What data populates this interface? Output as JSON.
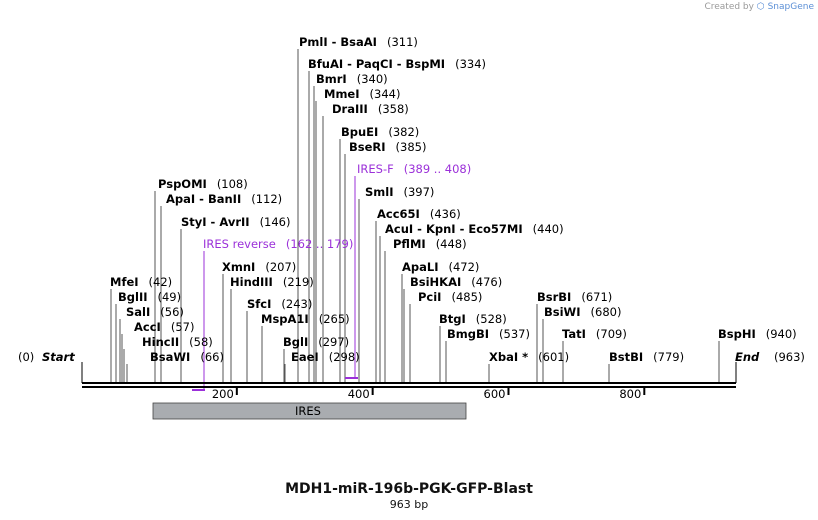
{
  "credit": {
    "prefix": "Created by",
    "brand": "SnapGene"
  },
  "map": {
    "title": "MDH1-miR-196b-PGK-GFP-Blast",
    "length_label": "963 bp",
    "start_pos": "(0)",
    "start_label": "Start",
    "end_label": "End",
    "end_pos": "(963)",
    "feature": {
      "name": "IRES",
      "start": 91,
      "end": 599
    },
    "ticks": [
      "200",
      "400",
      "600",
      "800"
    ],
    "sites": [
      {
        "text": "PmlI  - BsaAI",
        "pos": "(311)",
        "bp": 311
      },
      {
        "text": "BfuAI  - PaqCI  - BspMI",
        "pos": "(334)",
        "bp": 334
      },
      {
        "text": "BmrI",
        "pos": "(340)",
        "bp": 340
      },
      {
        "text": "MmeI",
        "pos": "(344)",
        "bp": 344
      },
      {
        "text": "DraIII",
        "pos": "(358)",
        "bp": 358
      },
      {
        "text": "BpuEI",
        "pos": "(382)",
        "bp": 382
      },
      {
        "text": "BseRI",
        "pos": "(385)",
        "bp": 385
      },
      {
        "text": "IRES-F",
        "pos": "(389 .. 408)",
        "bp": 398,
        "primer": true
      },
      {
        "text": "SmlI",
        "pos": "(397)",
        "bp": 397
      },
      {
        "text": "PspOMI",
        "pos": "(108)",
        "bp": 108
      },
      {
        "text": "ApaI  - BanII",
        "pos": "(112)",
        "bp": 112
      },
      {
        "text": "StyI  - AvrII",
        "pos": "(146)",
        "bp": 146
      },
      {
        "text": "IRES reverse",
        "pos": "(162 .. 179)",
        "bp": 179,
        "primer": true
      },
      {
        "text": "XmnI",
        "pos": "(207)",
        "bp": 207
      },
      {
        "text": "HindIII",
        "pos": "(219)",
        "bp": 219
      },
      {
        "text": "SfcI",
        "pos": "(243)",
        "bp": 243
      },
      {
        "text": "MspA1I",
        "pos": "(265)",
        "bp": 265
      },
      {
        "text": "BglI",
        "pos": "(297)",
        "bp": 297
      },
      {
        "text": "EaeI",
        "pos": "(298)",
        "bp": 298
      },
      {
        "text": "MfeI",
        "pos": "(42)",
        "bp": 42
      },
      {
        "text": "BglII",
        "pos": "(49)",
        "bp": 49
      },
      {
        "text": "SalI",
        "pos": "(56)",
        "bp": 56
      },
      {
        "text": "AccI",
        "pos": "(57)",
        "bp": 57
      },
      {
        "text": "HincII",
        "pos": "(58)",
        "bp": 58
      },
      {
        "text": "BsaWI",
        "pos": "(66)",
        "bp": 66
      },
      {
        "text": "Acc65I",
        "pos": "(436)",
        "bp": 436
      },
      {
        "text": "AcuI  - KpnI  - Eco57MI",
        "pos": "(440)",
        "bp": 440
      },
      {
        "text": "PflMI",
        "pos": "(448)",
        "bp": 448
      },
      {
        "text": "ApaLI",
        "pos": "(472)",
        "bp": 472
      },
      {
        "text": "BsiHKAI",
        "pos": "(476)",
        "bp": 476
      },
      {
        "text": "PciI",
        "pos": "(485)",
        "bp": 485
      },
      {
        "text": "BtgI",
        "pos": "(528)",
        "bp": 528
      },
      {
        "text": "BmgBI",
        "pos": "(537)",
        "bp": 537
      },
      {
        "text": "XbaI *",
        "pos": "(601)",
        "bp": 601
      },
      {
        "text": "BsrBI",
        "pos": "(671)",
        "bp": 671
      },
      {
        "text": "BsiWI",
        "pos": "(680)",
        "bp": 680
      },
      {
        "text": "TatI",
        "pos": "(709)",
        "bp": 709
      },
      {
        "text": "BstBI",
        "pos": "(779)",
        "bp": 779
      },
      {
        "text": "BspHI",
        "pos": "(940)",
        "bp": 940
      }
    ]
  }
}
